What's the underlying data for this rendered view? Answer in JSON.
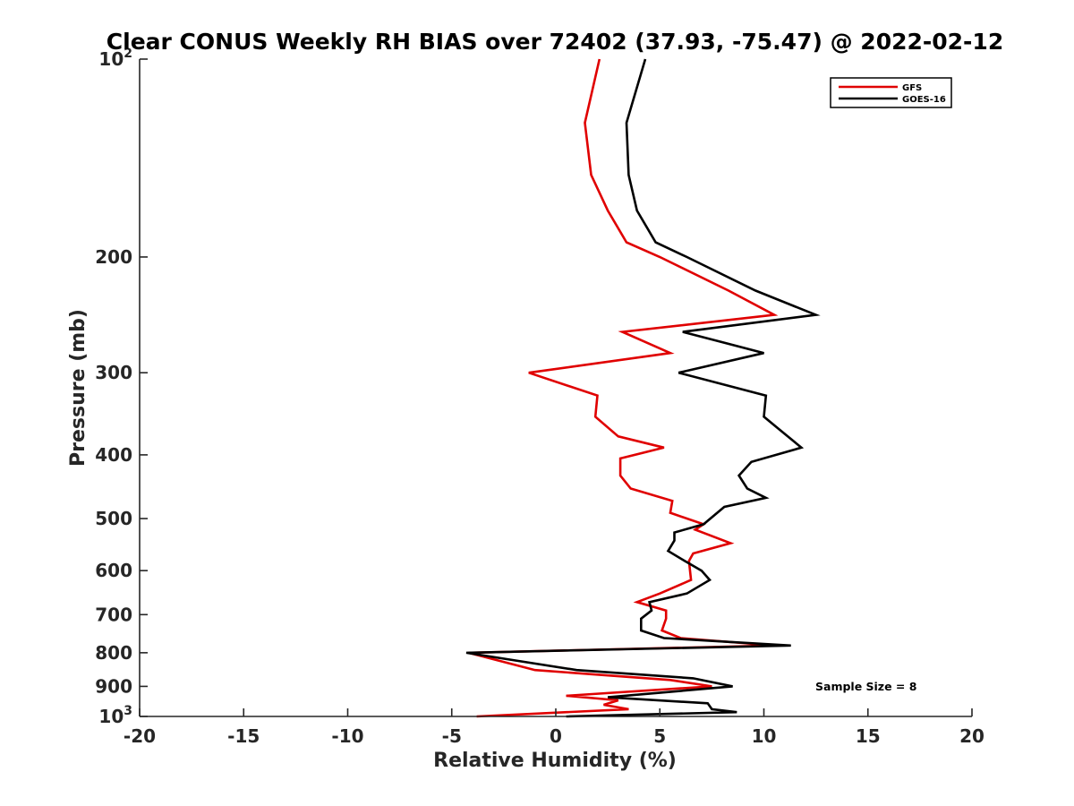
{
  "chart_data": {
    "type": "line",
    "title": "Clear CONUS Weekly RH BIAS over 72402 (37.93, -75.47) @ 2022-02-12",
    "xlabel": "Relative Humidity (%)",
    "ylabel": "Pressure (mb)",
    "xlim": [
      -20,
      20
    ],
    "ylim": [
      100,
      1000
    ],
    "yscale": "log",
    "y_reversed": true,
    "x_ticks": [
      -20,
      -15,
      -10,
      -5,
      0,
      5,
      10,
      15,
      20
    ],
    "x_tick_labels": [
      "-20",
      "-15",
      "-10",
      "-5",
      "0",
      "5",
      "10",
      "15",
      "20"
    ],
    "y_ticks": [
      {
        "value": 100,
        "base": "10",
        "exp": "2"
      },
      {
        "value": 200,
        "label": "200"
      },
      {
        "value": 300,
        "label": "300"
      },
      {
        "value": 400,
        "label": "400"
      },
      {
        "value": 500,
        "label": "500"
      },
      {
        "value": 600,
        "label": "600"
      },
      {
        "value": 700,
        "label": "700"
      },
      {
        "value": 800,
        "label": "800"
      },
      {
        "value": 900,
        "label": "900"
      },
      {
        "value": 1000,
        "base": "10",
        "exp": "3"
      }
    ],
    "legend": {
      "position": "top-right",
      "entries": [
        "GFS",
        "GOES-16"
      ]
    },
    "annotation": "Sample Size = 8",
    "series": [
      {
        "name": "GFS",
        "color": "#e00000",
        "points": [
          [
            2.1,
            100
          ],
          [
            1.4,
            125
          ],
          [
            1.7,
            150
          ],
          [
            2.5,
            170
          ],
          [
            3.4,
            190
          ],
          [
            5.0,
            200
          ],
          [
            8.3,
            225
          ],
          [
            10.5,
            245
          ],
          [
            3.2,
            260
          ],
          [
            5.5,
            280
          ],
          [
            -1.3,
            300
          ],
          [
            2.0,
            325
          ],
          [
            1.9,
            350
          ],
          [
            3.0,
            375
          ],
          [
            5.2,
            390
          ],
          [
            3.1,
            405
          ],
          [
            3.1,
            430
          ],
          [
            3.6,
            450
          ],
          [
            5.6,
            470
          ],
          [
            5.5,
            490
          ],
          [
            7.1,
            510
          ],
          [
            6.7,
            520
          ],
          [
            8.4,
            545
          ],
          [
            6.6,
            565
          ],
          [
            6.4,
            580
          ],
          [
            6.5,
            620
          ],
          [
            5.0,
            650
          ],
          [
            3.9,
            670
          ],
          [
            5.3,
            690
          ],
          [
            5.3,
            710
          ],
          [
            5.1,
            740
          ],
          [
            6.0,
            760
          ],
          [
            10.5,
            780
          ],
          [
            -4.2,
            800
          ],
          [
            -1.0,
            850
          ],
          [
            5.5,
            880
          ],
          [
            7.5,
            900
          ],
          [
            0.5,
            930
          ],
          [
            3.0,
            945
          ],
          [
            2.3,
            960
          ],
          [
            3.5,
            975
          ],
          [
            -3.8,
            1000
          ]
        ]
      },
      {
        "name": "GOES-16",
        "color": "#000000",
        "points": [
          [
            4.3,
            100
          ],
          [
            3.4,
            125
          ],
          [
            3.5,
            150
          ],
          [
            3.9,
            170
          ],
          [
            4.8,
            190
          ],
          [
            6.3,
            200
          ],
          [
            9.6,
            225
          ],
          [
            12.5,
            245
          ],
          [
            6.1,
            260
          ],
          [
            10.0,
            280
          ],
          [
            5.9,
            300
          ],
          [
            10.1,
            325
          ],
          [
            10.0,
            350
          ],
          [
            10.7,
            365
          ],
          [
            11.8,
            390
          ],
          [
            9.4,
            410
          ],
          [
            8.8,
            430
          ],
          [
            9.2,
            450
          ],
          [
            10.1,
            465
          ],
          [
            8.1,
            480
          ],
          [
            7.1,
            510
          ],
          [
            5.7,
            525
          ],
          [
            5.7,
            540
          ],
          [
            5.4,
            560
          ],
          [
            6.2,
            580
          ],
          [
            7.0,
            600
          ],
          [
            7.4,
            620
          ],
          [
            6.3,
            650
          ],
          [
            4.5,
            670
          ],
          [
            4.6,
            690
          ],
          [
            4.1,
            710
          ],
          [
            4.1,
            740
          ],
          [
            5.2,
            760
          ],
          [
            11.3,
            780
          ],
          [
            -4.3,
            800
          ],
          [
            1.0,
            850
          ],
          [
            6.6,
            875
          ],
          [
            8.5,
            900
          ],
          [
            2.5,
            935
          ],
          [
            7.3,
            955
          ],
          [
            7.5,
            975
          ],
          [
            8.7,
            985
          ],
          [
            0.5,
            1000
          ]
        ]
      }
    ]
  }
}
